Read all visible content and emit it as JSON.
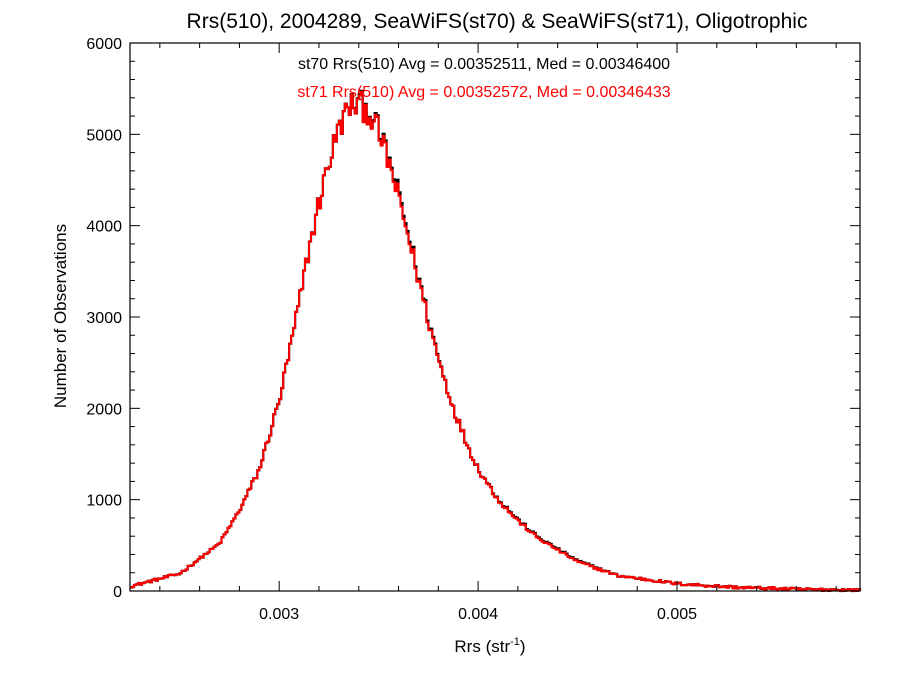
{
  "chart_data": {
    "type": "line",
    "title": "Rrs(510), 2004289, SeaWiFS(st70) & SeaWiFS(st71), Oligotrophic",
    "xlabel_main": "Rrs (str",
    "xlabel_sup": "-1",
    "xlabel_close": ")",
    "ylabel": "Number of Observations",
    "xlim": [
      0.00225,
      0.00592
    ],
    "ylim": [
      0,
      6000
    ],
    "x_ticks": [
      0.003,
      0.004,
      0.005
    ],
    "x_tick_labels": [
      "0.003",
      "0.004",
      "0.005"
    ],
    "y_ticks": [
      0,
      1000,
      2000,
      3000,
      4000,
      5000,
      6000
    ],
    "y_tick_labels": [
      "0",
      "1000",
      "2000",
      "3000",
      "4000",
      "5000",
      "6000"
    ],
    "grid": false,
    "annotations": [
      {
        "text": "st70 Rrs(510) Avg = 0.00352511, Med = 0.00346400",
        "color": "#000000"
      },
      {
        "text": "st71 Rrs(510) Avg = 0.00352572, Med = 0.00346433",
        "color": "#ff0000"
      }
    ],
    "series": [
      {
        "color": "#000000",
        "x": [
          0.00225,
          0.0025,
          0.0027,
          0.0028,
          0.0029,
          0.003,
          0.00305,
          0.0031,
          0.00315,
          0.0032,
          0.00325,
          0.0033,
          0.00335,
          0.0034,
          0.00345,
          0.0035,
          0.00355,
          0.0036,
          0.00365,
          0.0037,
          0.00375,
          0.0038,
          0.00385,
          0.0039,
          0.00395,
          0.004,
          0.0041,
          0.0042,
          0.0043,
          0.0045,
          0.0047,
          0.005,
          0.0053,
          0.0056,
          0.00592
        ],
        "y": [
          50,
          190,
          520,
          880,
          1330,
          2080,
          2600,
          3150,
          3750,
          4250,
          4700,
          5060,
          5300,
          5340,
          5260,
          5040,
          4720,
          4340,
          3900,
          3440,
          2980,
          2560,
          2180,
          1860,
          1580,
          1340,
          1010,
          780,
          590,
          330,
          170,
          80,
          40,
          20,
          10
        ]
      },
      {
        "color": "#ff0000",
        "x": [
          0.00225,
          0.0025,
          0.0027,
          0.0028,
          0.0029,
          0.003,
          0.00305,
          0.0031,
          0.00315,
          0.0032,
          0.00325,
          0.0033,
          0.00335,
          0.0034,
          0.00345,
          0.0035,
          0.00355,
          0.0036,
          0.00365,
          0.0037,
          0.00375,
          0.0038,
          0.00385,
          0.0039,
          0.00395,
          0.004,
          0.0041,
          0.0042,
          0.0043,
          0.0045,
          0.0047,
          0.005,
          0.0053,
          0.0056,
          0.00592
        ],
        "y": [
          50,
          190,
          520,
          880,
          1330,
          2080,
          2600,
          3150,
          3750,
          4250,
          4700,
          5060,
          5300,
          5330,
          5250,
          5020,
          4700,
          4300,
          3870,
          3420,
          2960,
          2550,
          2180,
          1860,
          1580,
          1340,
          1000,
          770,
          580,
          320,
          170,
          80,
          40,
          20,
          10
        ]
      }
    ]
  }
}
